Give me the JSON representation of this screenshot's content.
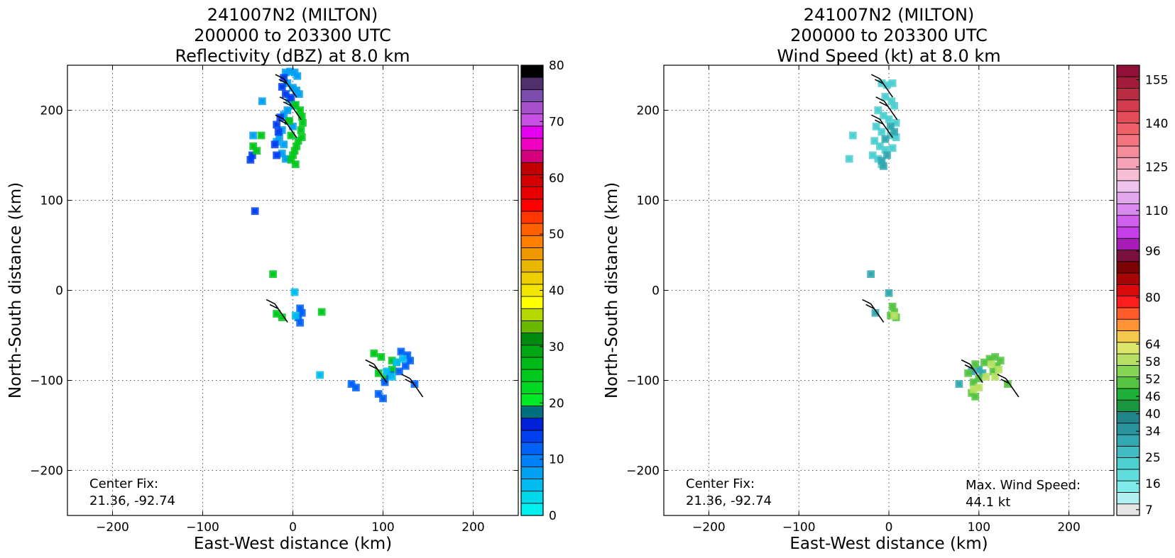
{
  "chart_data": [
    {
      "type": "heatmap",
      "title": [
        "241007N2 (MILTON)",
        "200000 to 203300 UTC",
        "Reflectivity (dBZ) at 8.0 km"
      ],
      "xlabel": "East-West distance (km)",
      "ylabel": "North-South distance (km)",
      "xlim": [
        -250,
        250
      ],
      "ylim": [
        -250,
        250
      ],
      "xticks": [
        -200,
        -100,
        0,
        100,
        200
      ],
      "yticks": [
        -200,
        -100,
        0,
        100,
        200
      ],
      "xtick_labels": [
        "−200",
        "−100",
        "0",
        "100",
        "200"
      ],
      "ytick_labels": [
        "−200",
        "−100",
        "0",
        "100",
        "200"
      ],
      "grid": true,
      "annotation": [
        "Center Fix:",
        "21.36, -92.74"
      ],
      "colorbar": {
        "min": 0,
        "max": 80,
        "tick_values": [
          0,
          10,
          20,
          30,
          40,
          50,
          60,
          70,
          80
        ],
        "tick_labels": [
          "0",
          "10",
          "20",
          "30",
          "40",
          "50",
          "60",
          "70",
          "80"
        ],
        "colors": [
          "#00f0f0",
          "#00d8ec",
          "#00bcee",
          "#00a0f2",
          "#0082f6",
          "#0062f6",
          "#0040ee",
          "#0020da",
          "#00707e",
          "#00e826",
          "#00d821",
          "#00c81c",
          "#00b818",
          "#00a614",
          "#008a0e",
          "#6ab800",
          "#b4d800",
          "#ffff00",
          "#f2e600",
          "#eed000",
          "#e8b600",
          "#f09800",
          "#ff8000",
          "#ff6000",
          "#ff3600",
          "#ff0000",
          "#e80000",
          "#d40000",
          "#c00000",
          "#d4007c",
          "#f000c0",
          "#e400ee",
          "#c850e4",
          "#a850cc",
          "#7c4cae",
          "#50306a",
          "#000000"
        ]
      },
      "series": [
        {
          "color": "#00a0f2",
          "points": [
            [
              -8,
              242
            ],
            [
              -3,
              243
            ],
            [
              2,
              242
            ],
            [
              5,
              238
            ],
            [
              -6,
              230
            ],
            [
              0,
              225
            ],
            [
              4,
              222
            ],
            [
              7,
              218
            ],
            [
              -4,
              212
            ],
            [
              1,
              205
            ],
            [
              -6,
              200
            ],
            [
              -10,
              195
            ],
            [
              -5,
              188
            ],
            [
              0,
              182
            ],
            [
              -12,
              178
            ],
            [
              -15,
              170
            ],
            [
              -10,
              162
            ],
            [
              -12,
              152
            ],
            [
              -8,
              146
            ],
            [
              -18,
              165
            ],
            [
              -44,
              172
            ],
            [
              -34,
              210
            ]
          ]
        },
        {
          "color": "#0040ee",
          "points": [
            [
              -10,
              236
            ],
            [
              -12,
              226
            ],
            [
              -8,
              218
            ],
            [
              -2,
              214
            ],
            [
              -14,
              192
            ],
            [
              -18,
              184
            ],
            [
              -16,
              176
            ],
            [
              -20,
              162
            ],
            [
              -18,
              150
            ],
            [
              -45,
              150
            ],
            [
              -47,
              145
            ],
            [
              -42,
              88
            ]
          ]
        },
        {
          "color": "#00c81c",
          "points": [
            [
              3,
              206
            ],
            [
              8,
              200
            ],
            [
              10,
              193
            ],
            [
              11,
              186
            ],
            [
              9,
              178
            ],
            [
              10,
              170
            ],
            [
              6,
              166
            ],
            [
              4,
              160
            ],
            [
              2,
              155
            ],
            [
              0,
              150
            ],
            [
              -2,
              145
            ],
            [
              3,
              140
            ],
            [
              -4,
              188
            ],
            [
              -2,
              172
            ],
            [
              -44,
              160
            ],
            [
              -40,
              155
            ],
            [
              -35,
              172
            ],
            [
              -22,
              18
            ],
            [
              -18,
              -26
            ],
            [
              -12,
              -30
            ],
            [
              32,
              -24
            ],
            [
              95,
              -92
            ],
            [
              102,
              -98
            ],
            [
              110,
              -88
            ],
            [
              115,
              -80
            ],
            [
              110,
              -78
            ],
            [
              90,
              -70
            ],
            [
              98,
              -74
            ]
          ]
        },
        {
          "color": "#0062f6",
          "points": [
            [
              8,
              -20
            ],
            [
              10,
              -25
            ],
            [
              6,
              -30
            ],
            [
              8,
              -36
            ],
            [
              120,
              -68
            ],
            [
              127,
              -72
            ],
            [
              130,
              -78
            ],
            [
              125,
              -84
            ],
            [
              118,
              -90
            ],
            [
              108,
              -94
            ],
            [
              102,
              -102
            ],
            [
              95,
              -115
            ],
            [
              100,
              -120
            ],
            [
              65,
              -104
            ],
            [
              70,
              -108
            ],
            [
              135,
              -104
            ]
          ]
        },
        {
          "color": "#00bcee",
          "points": [
            [
              2,
              -2
            ],
            [
              3,
              -28
            ],
            [
              115,
              -80
            ],
            [
              122,
              -76
            ],
            [
              104,
              -90
            ],
            [
              110,
              -96
            ],
            [
              30,
              -94
            ]
          ]
        }
      ],
      "barbs": [
        [
          -10,
          235
        ],
        [
          -5,
          210
        ],
        [
          -10,
          190
        ],
        [
          -20,
          -15
        ],
        [
          90,
          -82
        ],
        [
          130,
          -98
        ]
      ]
    },
    {
      "type": "heatmap",
      "title": [
        "241007N2 (MILTON)",
        "200000 to 203300 UTC",
        "Wind Speed (kt) at 8.0 km"
      ],
      "xlabel": "East-West distance (km)",
      "ylabel": "North-South distance (km)",
      "xlim": [
        -250,
        250
      ],
      "ylim": [
        -250,
        250
      ],
      "xticks": [
        -200,
        -100,
        0,
        100,
        200
      ],
      "yticks": [
        -200,
        -100,
        0,
        100,
        200
      ],
      "xtick_labels": [
        "−200",
        "−100",
        "0",
        "100",
        "200"
      ],
      "ytick_labels": [
        "−200",
        "−100",
        "0",
        "100",
        "200"
      ],
      "grid": true,
      "annotation": [
        "Center Fix:",
        "21.36, -92.74"
      ],
      "annotation_right": [
        "Max. Wind Speed:",
        "44.1 kt"
      ],
      "colorbar": {
        "min": 5,
        "max": 160,
        "tick_values": [
          7,
          16,
          25,
          34,
          40,
          46,
          52,
          58,
          64,
          80,
          96,
          110,
          125,
          140,
          155
        ],
        "tick_labels": [
          "7",
          "16",
          "25",
          "34",
          "40",
          "46",
          "52",
          "58",
          "64",
          "80",
          "96",
          "110",
          "125",
          "140",
          "155"
        ],
        "colors": [
          "#e6e6e6",
          "#b2f0ef",
          "#7eeaea",
          "#60dede",
          "#4ecfd0",
          "#40bcc2",
          "#34a8b0",
          "#2a949c",
          "#20848a",
          "#1a9640",
          "#1fb03a",
          "#56c442",
          "#86d456",
          "#b8e064",
          "#dce66a",
          "#f4c84a",
          "#ff9236",
          "#ff5a2a",
          "#ff1e1e",
          "#d80a0a",
          "#a80606",
          "#7a0404",
          "#7a1040",
          "#a81cb8",
          "#c63ee8",
          "#d060ee",
          "#d88aee",
          "#e2a8ee",
          "#eec4ee",
          "#f6bfd6",
          "#f6a2b8",
          "#f48c9c",
          "#f47480",
          "#f06068",
          "#e44c58",
          "#d23c4e",
          "#b82c44",
          "#a01c3a",
          "#901038"
        ]
      },
      "series": [
        {
          "color": "#4ecfd0",
          "points": [
            [
              -8,
              230
            ],
            [
              -2,
              228
            ],
            [
              4,
              230
            ],
            [
              -4,
              215
            ],
            [
              3,
              210
            ],
            [
              6,
              205
            ],
            [
              -12,
              200
            ],
            [
              -6,
              194
            ],
            [
              0,
              190
            ],
            [
              8,
              186
            ],
            [
              -14,
              182
            ],
            [
              -8,
              176
            ],
            [
              2,
              172
            ],
            [
              8,
              170
            ],
            [
              -16,
              166
            ],
            [
              -10,
              160
            ],
            [
              -4,
              156
            ],
            [
              4,
              158
            ],
            [
              -18,
              150
            ],
            [
              -12,
              146
            ],
            [
              -8,
              140
            ],
            [
              -40,
              172
            ],
            [
              -44,
              146
            ]
          ]
        },
        {
          "color": "#34a8b0",
          "points": [
            [
              2,
              182
            ],
            [
              6,
              176
            ],
            [
              -4,
              168
            ],
            [
              -2,
              150
            ],
            [
              -8,
              144
            ],
            [
              -6,
              138
            ],
            [
              -20,
              18
            ],
            [
              -15,
              -25
            ],
            [
              0,
              -3
            ],
            [
              78,
              -104
            ],
            [
              92,
              -90
            ],
            [
              100,
              -88
            ],
            [
              104,
              -92
            ]
          ]
        },
        {
          "color": "#56c442",
          "points": [
            [
              4,
              -18
            ],
            [
              6,
              -24
            ],
            [
              2,
              -28
            ],
            [
              8,
              -30
            ],
            [
              106,
              -80
            ],
            [
              112,
              -76
            ],
            [
              118,
              -74
            ],
            [
              124,
              -78
            ],
            [
              120,
              -84
            ],
            [
              116,
              -90
            ],
            [
              96,
              -82
            ],
            [
              88,
              -92
            ],
            [
              94,
              -102
            ],
            [
              100,
              -98
            ],
            [
              92,
              -114
            ],
            [
              96,
              -118
            ],
            [
              132,
              -104
            ]
          ]
        },
        {
          "color": "#b8e064",
          "points": [
            [
              114,
              -82
            ],
            [
              122,
              -88
            ],
            [
              108,
              -96
            ],
            [
              118,
              -96
            ],
            [
              100,
              -108
            ],
            [
              94,
              -110
            ],
            [
              6,
              -28
            ]
          ]
        }
      ],
      "barbs": [
        [
          -10,
          235
        ],
        [
          -5,
          210
        ],
        [
          -10,
          190
        ],
        [
          -20,
          -15
        ],
        [
          90,
          -82
        ],
        [
          130,
          -98
        ]
      ]
    }
  ]
}
